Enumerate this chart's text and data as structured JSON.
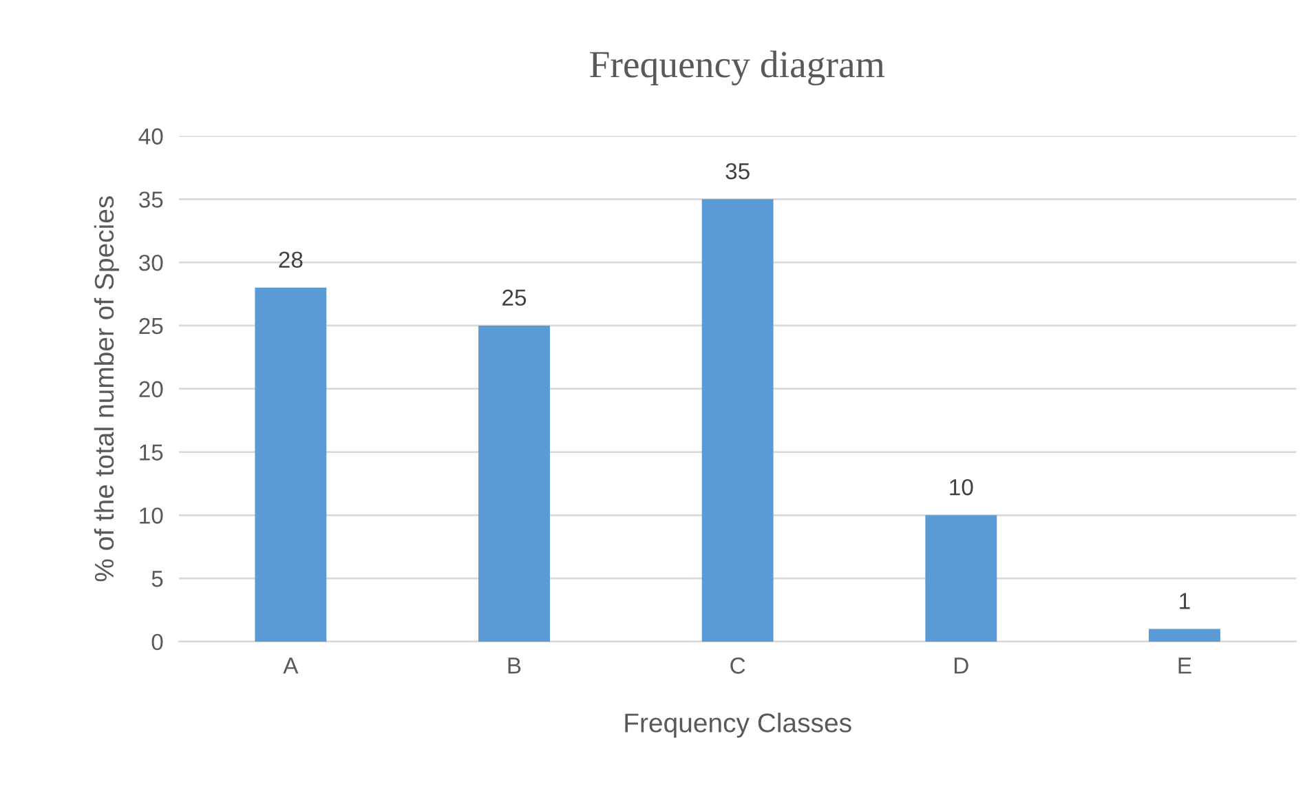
{
  "chart_data": {
    "type": "bar",
    "title": "Frequency diagram",
    "xlabel": "Frequency Classes",
    "ylabel": "% of the total number of Species",
    "categories": [
      "A",
      "B",
      "C",
      "D",
      "E"
    ],
    "values": [
      28,
      25,
      35,
      10,
      1
    ],
    "color": "#5b9bd5",
    "ylim": [
      0,
      40
    ],
    "yticks": [
      0,
      5,
      10,
      15,
      20,
      25,
      30,
      35,
      40
    ],
    "grid": "y",
    "data_labels": true
  }
}
